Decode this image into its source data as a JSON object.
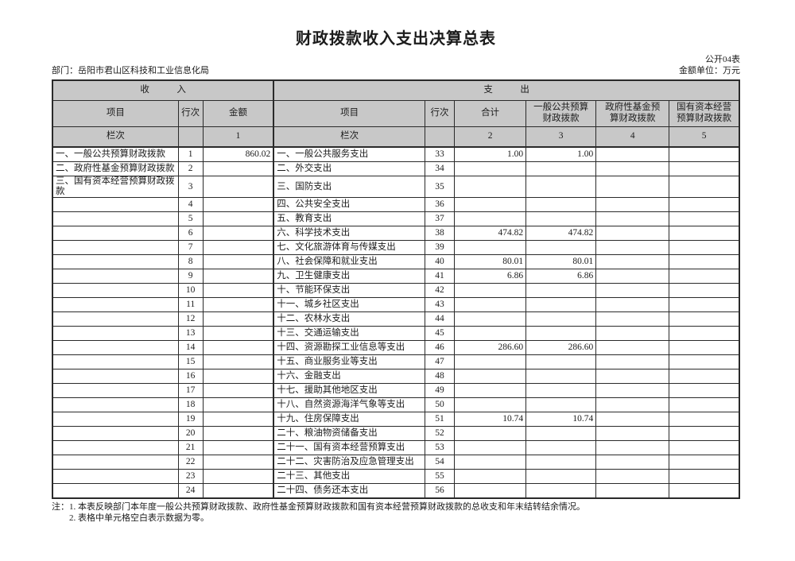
{
  "title": "财政拨款收入支出决算总表",
  "table_label": "公开04表",
  "department": "部门：岳阳市君山区科技和工业信息化局",
  "unit_label": "金额单位：万元",
  "headers": {
    "income_section": "收　　　入",
    "expense_section": "支　　　出",
    "income_item": "项目",
    "income_line": "行次",
    "income_amount": "金额",
    "expense_item": "项目",
    "expense_line": "行次",
    "expense_total": "合计",
    "expense_general_budget": "一般公共预算\n财政拨款",
    "expense_gov_fund": "政府性基金预\n算财政拨款",
    "expense_state_capital": "国有资本经营\n预算财政拨款",
    "index_label_income": "栏次",
    "index_label_expense": "栏次",
    "column_indexes": [
      "1",
      "2",
      "3",
      "4",
      "5"
    ]
  },
  "rows": [
    {
      "income_item": "一、一般公共预算财政拨款",
      "income_line": "1",
      "income_amount": "860.02",
      "expense_item": "一、一般公共服务支出",
      "expense_line": "33",
      "total": "1.00",
      "general_budget": "1.00",
      "gov_fund": "",
      "state_capital": ""
    },
    {
      "income_item": "二、政府性基金预算财政拨款",
      "income_line": "2",
      "income_amount": "",
      "expense_item": "二、外交支出",
      "expense_line": "34",
      "total": "",
      "general_budget": "",
      "gov_fund": "",
      "state_capital": ""
    },
    {
      "income_item": "三、国有资本经营预算财政拨款",
      "income_line": "3",
      "income_amount": "",
      "expense_item": "三、国防支出",
      "expense_line": "35",
      "total": "",
      "general_budget": "",
      "gov_fund": "",
      "state_capital": ""
    },
    {
      "income_item": "",
      "income_line": "4",
      "income_amount": "",
      "expense_item": "四、公共安全支出",
      "expense_line": "36",
      "total": "",
      "general_budget": "",
      "gov_fund": "",
      "state_capital": ""
    },
    {
      "income_item": "",
      "income_line": "5",
      "income_amount": "",
      "expense_item": "五、教育支出",
      "expense_line": "37",
      "total": "",
      "general_budget": "",
      "gov_fund": "",
      "state_capital": ""
    },
    {
      "income_item": "",
      "income_line": "6",
      "income_amount": "",
      "expense_item": "六、科学技术支出",
      "expense_line": "38",
      "total": "474.82",
      "general_budget": "474.82",
      "gov_fund": "",
      "state_capital": ""
    },
    {
      "income_item": "",
      "income_line": "7",
      "income_amount": "",
      "expense_item": "七、文化旅游体育与传媒支出",
      "expense_line": "39",
      "total": "",
      "general_budget": "",
      "gov_fund": "",
      "state_capital": ""
    },
    {
      "income_item": "",
      "income_line": "8",
      "income_amount": "",
      "expense_item": "八、社会保障和就业支出",
      "expense_line": "40",
      "total": "80.01",
      "general_budget": "80.01",
      "gov_fund": "",
      "state_capital": ""
    },
    {
      "income_item": "",
      "income_line": "9",
      "income_amount": "",
      "expense_item": "九、卫生健康支出",
      "expense_line": "41",
      "total": "6.86",
      "general_budget": "6.86",
      "gov_fund": "",
      "state_capital": ""
    },
    {
      "income_item": "",
      "income_line": "10",
      "income_amount": "",
      "expense_item": "十、节能环保支出",
      "expense_line": "42",
      "total": "",
      "general_budget": "",
      "gov_fund": "",
      "state_capital": ""
    },
    {
      "income_item": "",
      "income_line": "11",
      "income_amount": "",
      "expense_item": "十一、城乡社区支出",
      "expense_line": "43",
      "total": "",
      "general_budget": "",
      "gov_fund": "",
      "state_capital": ""
    },
    {
      "income_item": "",
      "income_line": "12",
      "income_amount": "",
      "expense_item": "十二、农林水支出",
      "expense_line": "44",
      "total": "",
      "general_budget": "",
      "gov_fund": "",
      "state_capital": ""
    },
    {
      "income_item": "",
      "income_line": "13",
      "income_amount": "",
      "expense_item": "十三、交通运输支出",
      "expense_line": "45",
      "total": "",
      "general_budget": "",
      "gov_fund": "",
      "state_capital": ""
    },
    {
      "income_item": "",
      "income_line": "14",
      "income_amount": "",
      "expense_item": "十四、资源勘探工业信息等支出",
      "expense_line": "46",
      "total": "286.60",
      "general_budget": "286.60",
      "gov_fund": "",
      "state_capital": ""
    },
    {
      "income_item": "",
      "income_line": "15",
      "income_amount": "",
      "expense_item": "十五、商业服务业等支出",
      "expense_line": "47",
      "total": "",
      "general_budget": "",
      "gov_fund": "",
      "state_capital": ""
    },
    {
      "income_item": "",
      "income_line": "16",
      "income_amount": "",
      "expense_item": "十六、金融支出",
      "expense_line": "48",
      "total": "",
      "general_budget": "",
      "gov_fund": "",
      "state_capital": ""
    },
    {
      "income_item": "",
      "income_line": "17",
      "income_amount": "",
      "expense_item": "十七、援助其他地区支出",
      "expense_line": "49",
      "total": "",
      "general_budget": "",
      "gov_fund": "",
      "state_capital": ""
    },
    {
      "income_item": "",
      "income_line": "18",
      "income_amount": "",
      "expense_item": "十八、自然资源海洋气象等支出",
      "expense_line": "50",
      "total": "",
      "general_budget": "",
      "gov_fund": "",
      "state_capital": ""
    },
    {
      "income_item": "",
      "income_line": "19",
      "income_amount": "",
      "expense_item": "十九、住房保障支出",
      "expense_line": "51",
      "total": "10.74",
      "general_budget": "10.74",
      "gov_fund": "",
      "state_capital": ""
    },
    {
      "income_item": "",
      "income_line": "20",
      "income_amount": "",
      "expense_item": "二十、粮油物资储备支出",
      "expense_line": "52",
      "total": "",
      "general_budget": "",
      "gov_fund": "",
      "state_capital": ""
    },
    {
      "income_item": "",
      "income_line": "21",
      "income_amount": "",
      "expense_item": "二十一、国有资本经营预算支出",
      "expense_line": "53",
      "total": "",
      "general_budget": "",
      "gov_fund": "",
      "state_capital": ""
    },
    {
      "income_item": "",
      "income_line": "22",
      "income_amount": "",
      "expense_item": "二十二、灾害防治及应急管理支出",
      "expense_line": "54",
      "total": "",
      "general_budget": "",
      "gov_fund": "",
      "state_capital": ""
    },
    {
      "income_item": "",
      "income_line": "23",
      "income_amount": "",
      "expense_item": "二十三、其他支出",
      "expense_line": "55",
      "total": "",
      "general_budget": "",
      "gov_fund": "",
      "state_capital": ""
    },
    {
      "income_item": "",
      "income_line": "24",
      "income_amount": "",
      "expense_item": "二十四、债务还本支出",
      "expense_line": "56",
      "total": "",
      "general_budget": "",
      "gov_fund": "",
      "state_capital": ""
    }
  ],
  "notes": [
    "注：1. 本表反映部门本年度一般公共预算财政拨款、政府性基金预算财政拨款和国有资本经营预算财政拨款的总收支和年末结转结余情况。",
    "2. 表格中单元格空白表示数据为零。"
  ]
}
